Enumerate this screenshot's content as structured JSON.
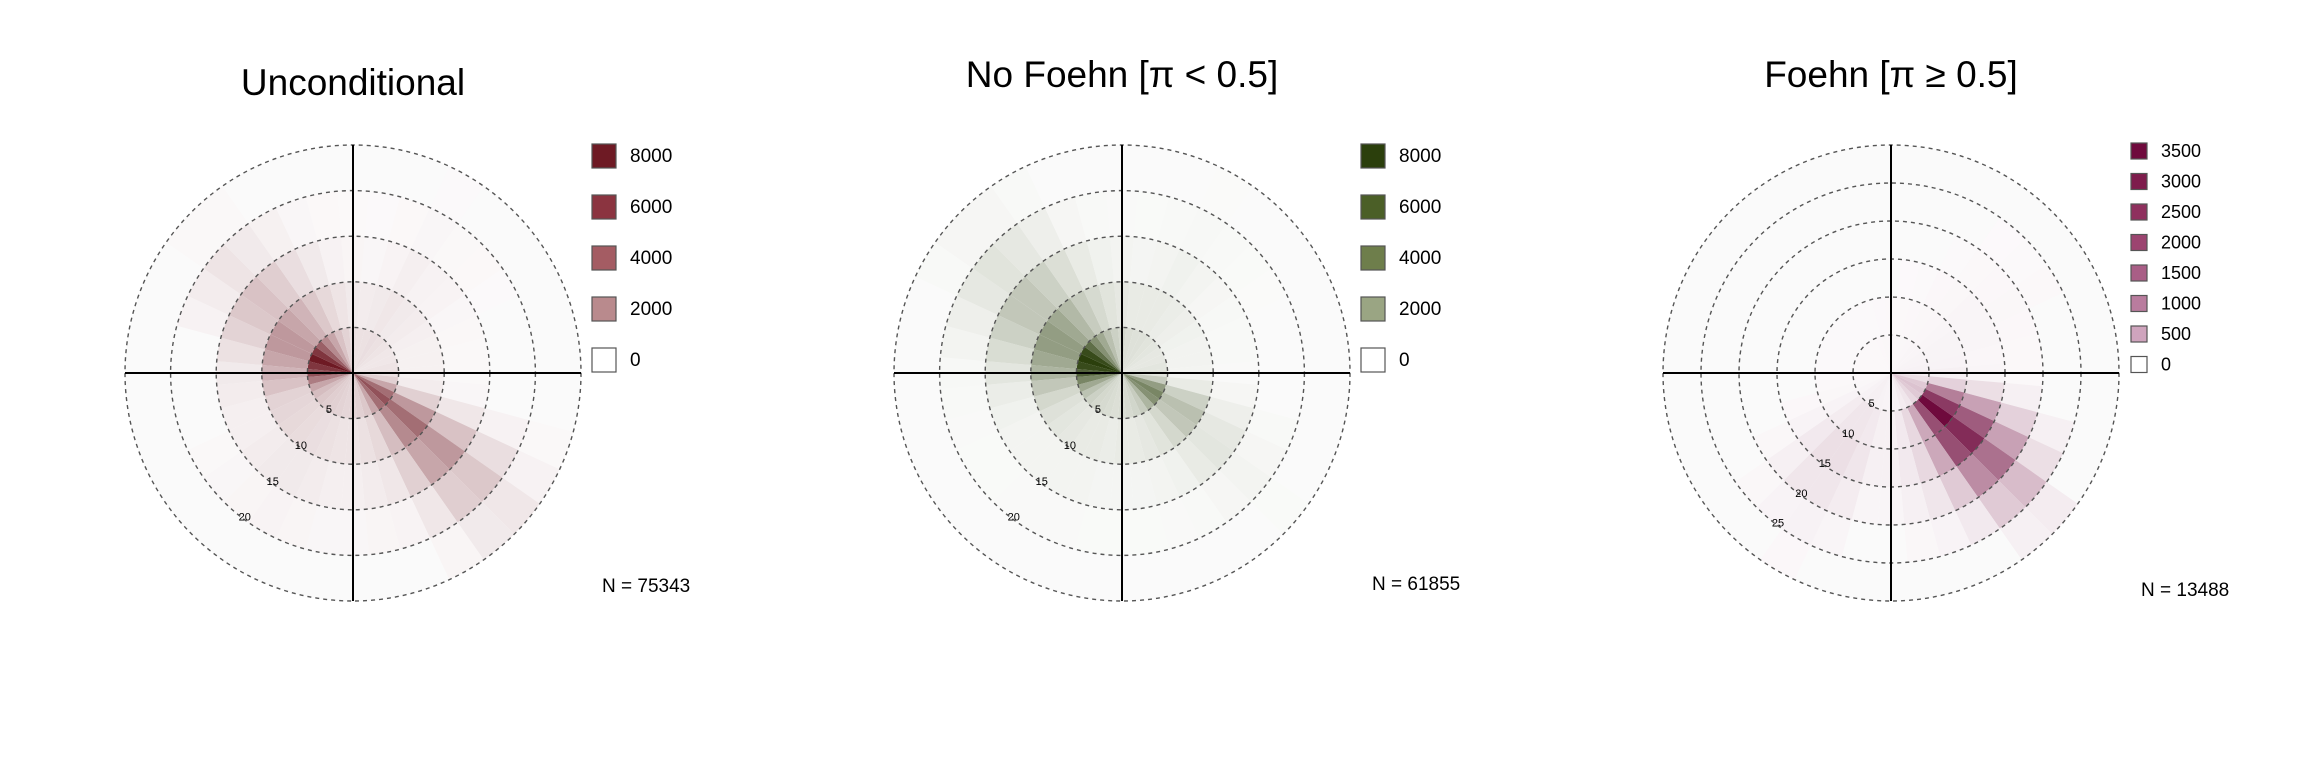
{
  "chart_data": [
    {
      "type": "polar-bar",
      "title": "Unconditional",
      "n_label": "N = 75343",
      "ring_labels": [
        "5",
        "10",
        "15",
        "20"
      ],
      "legend": {
        "entries": [
          {
            "label": "8000",
            "color": "#6e1a24"
          },
          {
            "label": "6000",
            "color": "#8b3440"
          },
          {
            "label": "4000",
            "color": "#a45c63"
          },
          {
            "label": "2000",
            "color": "#b98a8d"
          },
          {
            "label": "0",
            "color": "#ffffff"
          }
        ]
      },
      "color_high": "#6e1a24",
      "max_count": 8000,
      "radial_range": [
        0,
        25
      ],
      "direction_bin_deg": 10,
      "speed_bin": 5,
      "sectors": [
        {
          "dir": 0,
          "counts": [
            1000,
            600,
            200,
            50
          ]
        },
        {
          "dir": 10,
          "counts": [
            900,
            500,
            150,
            40
          ]
        },
        {
          "dir": 20,
          "counts": [
            900,
            600,
            250,
            80
          ]
        },
        {
          "dir": 30,
          "counts": [
            1000,
            700,
            400,
            150,
            40
          ]
        },
        {
          "dir": 40,
          "counts": [
            900,
            600,
            300,
            100
          ]
        },
        {
          "dir": 50,
          "counts": [
            800,
            500,
            250,
            80
          ]
        },
        {
          "dir": 60,
          "counts": [
            700,
            400,
            150,
            40
          ]
        },
        {
          "dir": 70,
          "counts": [
            700,
            350,
            120
          ]
        },
        {
          "dir": 80,
          "counts": [
            800,
            350,
            100
          ]
        },
        {
          "dir": 90,
          "counts": [
            900,
            350,
            100
          ]
        },
        {
          "dir": 100,
          "counts": [
            1500,
            500,
            150
          ]
        },
        {
          "dir": 110,
          "counts": [
            3000,
            1500,
            700,
            300,
            100
          ]
        },
        {
          "dir": 120,
          "counts": [
            5000,
            3500,
            2000,
            1000,
            300
          ]
        },
        {
          "dir": 130,
          "counts": [
            6000,
            5000,
            3500,
            1800,
            700,
            150
          ]
        },
        {
          "dir": 140,
          "counts": [
            5000,
            4000,
            3000,
            1600,
            600,
            120
          ]
        },
        {
          "dir": 150,
          "counts": [
            3000,
            2200,
            1500,
            700,
            200
          ]
        },
        {
          "dir": 160,
          "counts": [
            1800,
            1200,
            700,
            250
          ]
        },
        {
          "dir": 170,
          "counts": [
            1500,
            900,
            500,
            200
          ]
        },
        {
          "dir": 180,
          "counts": [
            1400,
            800,
            400,
            150
          ]
        },
        {
          "dir": 190,
          "counts": [
            1300,
            800,
            400,
            150
          ]
        },
        {
          "dir": 200,
          "counts": [
            1400,
            900,
            500,
            200
          ]
        },
        {
          "dir": 210,
          "counts": [
            1500,
            1000,
            600,
            250
          ]
        },
        {
          "dir": 220,
          "counts": [
            1600,
            1100,
            600,
            200
          ]
        },
        {
          "dir": 230,
          "counts": [
            1800,
            1200,
            500,
            150
          ]
        },
        {
          "dir": 240,
          "counts": [
            2200,
            1300,
            400,
            100
          ]
        },
        {
          "dir": 250,
          "counts": [
            3000,
            1400,
            400
          ]
        },
        {
          "dir": 260,
          "counts": [
            4500,
            2000,
            500
          ]
        },
        {
          "dir": 270,
          "counts": [
            6000,
            2500,
            600
          ]
        },
        {
          "dir": 280,
          "counts": [
            7000,
            3000,
            900
          ]
        },
        {
          "dir": 290,
          "counts": [
            8000,
            3500,
            1400,
            300
          ]
        },
        {
          "dir": 300,
          "counts": [
            7000,
            3500,
            1800,
            500
          ]
        },
        {
          "dir": 310,
          "counts": [
            5500,
            3000,
            2000,
            800,
            100
          ]
        },
        {
          "dir": 320,
          "counts": [
            4000,
            2500,
            1600,
            600,
            100
          ]
        },
        {
          "dir": 330,
          "counts": [
            3000,
            1800,
            1000,
            350
          ]
        },
        {
          "dir": 340,
          "counts": [
            2000,
            1200,
            600,
            150
          ]
        },
        {
          "dir": 350,
          "counts": [
            1400,
            800,
            300,
            80
          ]
        }
      ]
    },
    {
      "type": "polar-bar",
      "title": "No Foehn [π < 0.5]",
      "n_label": "N = 61855",
      "ring_labels": [
        "5",
        "10",
        "15",
        "20"
      ],
      "legend": {
        "entries": [
          {
            "label": "8000",
            "color": "#2b3f0c"
          },
          {
            "label": "6000",
            "color": "#4b5f27"
          },
          {
            "label": "4000",
            "color": "#6e7e4b"
          },
          {
            "label": "2000",
            "color": "#9aa583"
          },
          {
            "label": "0",
            "color": "#ffffff"
          }
        ]
      },
      "color_high": "#2b3f0c",
      "max_count": 8000,
      "radial_range": [
        0,
        25
      ],
      "direction_bin_deg": 10,
      "speed_bin": 5,
      "sectors": [
        {
          "dir": 0,
          "counts": [
            1500,
            800,
            300,
            80
          ]
        },
        {
          "dir": 10,
          "counts": [
            1200,
            700,
            250,
            60
          ]
        },
        {
          "dir": 20,
          "counts": [
            1100,
            700,
            300,
            100
          ]
        },
        {
          "dir": 30,
          "counts": [
            1100,
            700,
            400,
            150,
            40
          ]
        },
        {
          "dir": 40,
          "counts": [
            1000,
            600,
            300,
            100
          ]
        },
        {
          "dir": 50,
          "counts": [
            900,
            500,
            200,
            60
          ]
        },
        {
          "dir": 60,
          "counts": [
            800,
            400,
            150,
            40
          ]
        },
        {
          "dir": 70,
          "counts": [
            800,
            350,
            100
          ]
        },
        {
          "dir": 80,
          "counts": [
            900,
            350,
            100
          ]
        },
        {
          "dir": 90,
          "counts": [
            1000,
            300,
            80
          ]
        },
        {
          "dir": 100,
          "counts": [
            2000,
            700,
            200
          ]
        },
        {
          "dir": 110,
          "counts": [
            4000,
            1800,
            500,
            100
          ]
        },
        {
          "dir": 120,
          "counts": [
            5000,
            2500,
            800,
            200
          ]
        },
        {
          "dir": 130,
          "counts": [
            4500,
            2200,
            900,
            300,
            60
          ]
        },
        {
          "dir": 140,
          "counts": [
            3000,
            1500,
            700,
            200
          ]
        },
        {
          "dir": 150,
          "counts": [
            2000,
            1000,
            400,
            100
          ]
        },
        {
          "dir": 160,
          "counts": [
            1600,
            800,
            300,
            80
          ]
        },
        {
          "dir": 170,
          "counts": [
            1400,
            700,
            250,
            60
          ]
        },
        {
          "dir": 180,
          "counts": [
            1300,
            700,
            250,
            60
          ]
        },
        {
          "dir": 190,
          "counts": [
            1200,
            600,
            250,
            60
          ]
        },
        {
          "dir": 200,
          "counts": [
            1300,
            700,
            300,
            80
          ]
        },
        {
          "dir": 210,
          "counts": [
            1400,
            700,
            300,
            80
          ]
        },
        {
          "dir": 220,
          "counts": [
            1500,
            800,
            300,
            80
          ]
        },
        {
          "dir": 230,
          "counts": [
            1800,
            900,
            300,
            60
          ]
        },
        {
          "dir": 240,
          "counts": [
            2400,
            1100,
            300,
            60
          ]
        },
        {
          "dir": 250,
          "counts": [
            3500,
            1500,
            400,
            80
          ]
        },
        {
          "dir": 260,
          "counts": [
            5000,
            2200,
            600,
            100
          ]
        },
        {
          "dir": 270,
          "counts": [
            6500,
            3000,
            900,
            150
          ]
        },
        {
          "dir": 280,
          "counts": [
            7500,
            3500,
            1300,
            300
          ]
        },
        {
          "dir": 290,
          "counts": [
            8000,
            4000,
            1800,
            500
          ]
        },
        {
          "dir": 300,
          "counts": [
            7500,
            4000,
            2200,
            800,
            100
          ]
        },
        {
          "dir": 310,
          "counts": [
            6000,
            3500,
            2200,
            1000,
            200
          ]
        },
        {
          "dir": 320,
          "counts": [
            4500,
            2800,
            1800,
            800,
            200
          ]
        },
        {
          "dir": 330,
          "counts": [
            3500,
            2000,
            1200,
            500,
            100
          ]
        },
        {
          "dir": 340,
          "counts": [
            2500,
            1400,
            700,
            200
          ]
        },
        {
          "dir": 350,
          "counts": [
            1800,
            1000,
            400,
            100
          ]
        }
      ]
    },
    {
      "type": "polar-bar",
      "title": "Foehn [π ≥ 0.5]",
      "n_label": "N = 13488",
      "ring_labels": [
        "5",
        "10",
        "15",
        "20",
        "25"
      ],
      "legend": {
        "entries": [
          {
            "label": "3500",
            "color": "#6f0a3d"
          },
          {
            "label": "3000",
            "color": "#7e1c4c"
          },
          {
            "label": "2500",
            "color": "#8f305e"
          },
          {
            "label": "2000",
            "color": "#9c4470"
          },
          {
            "label": "1500",
            "color": "#a95e86"
          },
          {
            "label": "1000",
            "color": "#b97c9e"
          },
          {
            "label": "500",
            "color": "#cfa4bd"
          },
          {
            "label": "0",
            "color": "#ffffff"
          }
        ]
      },
      "color_high": "#6f0a3d",
      "max_count": 3500,
      "radial_range": [
        0,
        30
      ],
      "direction_bin_deg": 10,
      "speed_bin": 5,
      "sectors": [
        {
          "dir": 0,
          "counts": [
            60,
            30
          ]
        },
        {
          "dir": 10,
          "counts": [
            50,
            30,
            10
          ]
        },
        {
          "dir": 20,
          "counts": [
            50,
            40,
            20
          ]
        },
        {
          "dir": 30,
          "counts": [
            60,
            50,
            40,
            20
          ]
        },
        {
          "dir": 40,
          "counts": [
            70,
            60,
            50,
            30,
            10
          ]
        },
        {
          "dir": 50,
          "counts": [
            80,
            80,
            70,
            40,
            20
          ]
        },
        {
          "dir": 60,
          "counts": [
            90,
            90,
            80,
            50,
            30
          ]
        },
        {
          "dir": 70,
          "counts": [
            100,
            90,
            70,
            40
          ]
        },
        {
          "dir": 80,
          "counts": [
            120,
            100,
            60,
            30
          ]
        },
        {
          "dir": 90,
          "counts": [
            200,
            150,
            80,
            30
          ]
        },
        {
          "dir": 100,
          "counts": [
            400,
            600,
            400,
            150
          ]
        },
        {
          "dir": 110,
          "counts": [
            700,
            1800,
            1300,
            600,
            150
          ]
        },
        {
          "dir": 120,
          "counts": [
            800,
            2800,
            2300,
            1300,
            400
          ]
        },
        {
          "dir": 130,
          "counts": [
            700,
            3500,
            3000,
            2000,
            900,
            200
          ]
        },
        {
          "dir": 140,
          "counts": [
            500,
            2500,
            2500,
            1600,
            700,
            150
          ]
        },
        {
          "dir": 150,
          "counts": [
            300,
            1200,
            1200,
            700,
            250
          ]
        },
        {
          "dir": 160,
          "counts": [
            200,
            500,
            500,
            300,
            100
          ]
        },
        {
          "dir": 170,
          "counts": [
            120,
            250,
            250,
            150,
            50
          ]
        },
        {
          "dir": 180,
          "counts": [
            100,
            150,
            150,
            80
          ]
        },
        {
          "dir": 190,
          "counts": [
            100,
            150,
            150,
            80
          ]
        },
        {
          "dir": 200,
          "counts": [
            120,
            250,
            300,
            200,
            80
          ]
        },
        {
          "dir": 210,
          "counts": [
            150,
            300,
            400,
            300,
            120,
            40
          ]
        },
        {
          "dir": 220,
          "counts": [
            150,
            300,
            400,
            300,
            100
          ]
        },
        {
          "dir": 230,
          "counts": [
            120,
            200,
            250,
            150,
            50
          ]
        },
        {
          "dir": 240,
          "counts": [
            80,
            100,
            100,
            50
          ]
        },
        {
          "dir": 250,
          "counts": [
            50,
            50,
            40
          ]
        },
        {
          "dir": 260,
          "counts": [
            40,
            30
          ]
        },
        {
          "dir": 270,
          "counts": [
            30,
            20
          ]
        },
        {
          "dir": 280,
          "counts": [
            30,
            20
          ]
        },
        {
          "dir": 290,
          "counts": [
            30,
            20
          ]
        },
        {
          "dir": 300,
          "counts": [
            30,
            20
          ]
        },
        {
          "dir": 310,
          "counts": [
            30,
            20
          ]
        },
        {
          "dir": 320,
          "counts": [
            30,
            20
          ]
        },
        {
          "dir": 330,
          "counts": [
            30,
            20
          ]
        },
        {
          "dir": 340,
          "counts": [
            40,
            20
          ]
        },
        {
          "dir": 350,
          "counts": [
            50,
            25
          ]
        }
      ]
    }
  ]
}
